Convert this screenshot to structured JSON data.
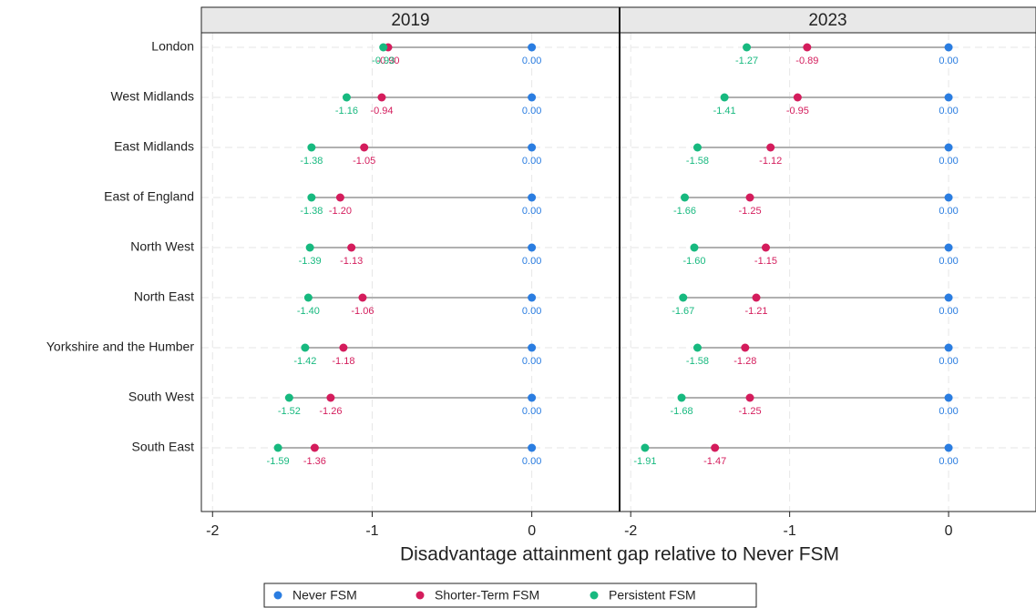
{
  "chart_data": {
    "type": "dot",
    "x_label": "Disadvantage attainment gap relative to Never FSM",
    "categories": [
      "London",
      "West Midlands",
      "East Midlands",
      "East of England",
      "North West",
      "North East",
      "Yorkshire and the Humber",
      "South West",
      "South East"
    ],
    "xlim": [
      -2.07,
      0.55
    ],
    "xticks": [
      -2,
      -1,
      0
    ],
    "grid": true,
    "legend": "bottom",
    "series": [
      {
        "name": "Never FSM",
        "color": "#2a7de1"
      },
      {
        "name": "Shorter-Term FSM",
        "color": "#d41c5c"
      },
      {
        "name": "Persistent FSM",
        "color": "#17b97f"
      }
    ],
    "panels": [
      {
        "title": "2019",
        "series": [
          {
            "values": [
              0,
              0,
              0,
              0,
              0,
              0,
              0,
              0,
              0
            ],
            "value_labels": [
              "0.00",
              "0.00",
              "0.00",
              "0.00",
              "0.00",
              "0.00",
              "0.00",
              "0.00",
              "0.00"
            ]
          },
          {
            "values": [
              -0.9,
              -0.94,
              -1.05,
              -1.2,
              -1.13,
              -1.06,
              -1.18,
              -1.26,
              -1.36
            ],
            "value_labels": [
              "-0.90",
              "-0.94",
              "-1.05",
              "-1.20",
              "-1.13",
              "-1.06",
              "-1.18",
              "-1.26",
              "-1.36"
            ]
          },
          {
            "values": [
              -0.93,
              -1.16,
              -1.38,
              -1.38,
              -1.39,
              -1.4,
              -1.42,
              -1.52,
              -1.59
            ],
            "value_labels": [
              "-0.93",
              "-1.16",
              "-1.38",
              "-1.38",
              "-1.39",
              "-1.40",
              "-1.42",
              "-1.52",
              "-1.59"
            ]
          }
        ]
      },
      {
        "title": "2023",
        "series": [
          {
            "values": [
              0,
              0,
              0,
              0,
              0,
              0,
              0,
              0,
              0
            ],
            "value_labels": [
              "0.00",
              "0.00",
              "0.00",
              "0.00",
              "0.00",
              "0.00",
              "0.00",
              "0.00",
              "0.00"
            ]
          },
          {
            "values": [
              -0.89,
              -0.95,
              -1.12,
              -1.25,
              -1.15,
              -1.21,
              -1.28,
              -1.25,
              -1.47
            ],
            "value_labels": [
              "-0.89",
              "-0.95",
              "-1.12",
              "-1.25",
              "-1.15",
              "-1.21",
              "-1.28",
              "-1.25",
              "-1.47"
            ]
          },
          {
            "values": [
              -1.27,
              -1.41,
              -1.58,
              -1.66,
              -1.6,
              -1.67,
              -1.58,
              -1.68,
              -1.91
            ],
            "value_labels": [
              "-1.27",
              "-1.41",
              "-1.58",
              "-1.66",
              "-1.60",
              "-1.67",
              "-1.58",
              "-1.68",
              "-1.91"
            ]
          }
        ]
      }
    ]
  }
}
